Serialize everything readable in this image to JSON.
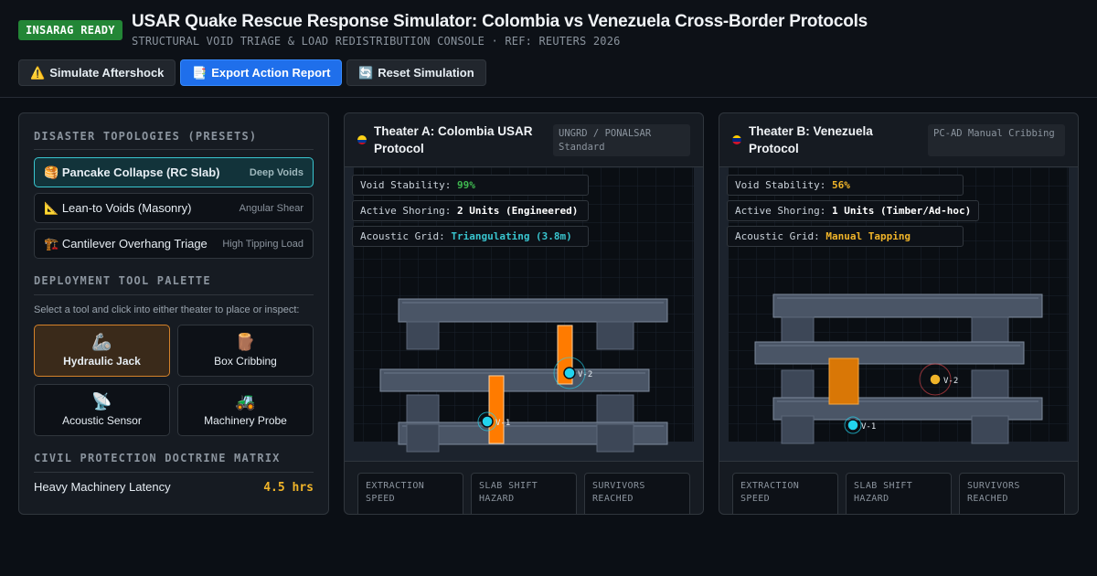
{
  "header": {
    "badge": "INSARAG READY",
    "title": "USAR Quake Rescue Response Simulator: Colombia vs Venezuela Cross-Border Protocols",
    "subtitle": "STRUCTURAL VOID TRIAGE & LOAD REDISTRIBUTION CONSOLE · REF: REUTERS 2026",
    "buttons": [
      {
        "icon": "⚠️",
        "label": "Simulate Aftershock",
        "icon_name": "warning-icon"
      },
      {
        "icon": "📑",
        "label": "Export Action Report",
        "icon_name": "report-icon"
      },
      {
        "icon": "🔄",
        "label": "Reset Simulation",
        "icon_name": "refresh-icon"
      }
    ]
  },
  "sidebar": {
    "presets_title": "DISASTER TOPOLOGIES (PRESETS)",
    "presets": [
      {
        "icon": "🥞",
        "name": "Pancake Collapse (RC Slab)",
        "tag": "Deep Voids",
        "active": true
      },
      {
        "icon": "📐",
        "name": "Lean-to Voids (Masonry)",
        "tag": "Angular Shear",
        "active": false
      },
      {
        "icon": "🏗️",
        "name": "Cantilever Overhang Triage",
        "tag": "High Tipping Load",
        "active": false
      }
    ],
    "tools_title": "DEPLOYMENT TOOL PALETTE",
    "tools_hint": "Select a tool and click into either theater to place or inspect:",
    "tools": [
      {
        "icon": "🦾",
        "label": "Hydraulic Jack",
        "active": true,
        "icon_name": "mechanical-arm-icon"
      },
      {
        "icon": "🪵",
        "label": "Box Cribbing",
        "active": false,
        "icon_name": "wood-icon"
      },
      {
        "icon": "📡",
        "label": "Acoustic Sensor",
        "active": false,
        "icon_name": "antenna-icon"
      },
      {
        "icon": "🚜",
        "label": "Machinery Probe",
        "active": false,
        "icon_name": "tractor-icon"
      }
    ],
    "doctrine_title": "CIVIL PROTECTION DOCTRINE MATRIX",
    "doctrine_metric": {
      "label": "Heavy Machinery Latency",
      "value": "4.5 hrs"
    }
  },
  "theaters": [
    {
      "title": "Theater A: Colombia USAR Protocol",
      "tag": "UNGRD / PONALSAR Standard",
      "flag_colors": [
        "#fcd116",
        "#003893",
        "#ce1126"
      ],
      "readouts": [
        {
          "label": "Void Stability:",
          "value": "99%",
          "color": "#3fb950"
        },
        {
          "label": "Active Shoring:",
          "value": "2 Units (Engineered)",
          "color": "#ffffff"
        },
        {
          "label": "Acoustic Grid:",
          "value": "Triangulating (3.8m)",
          "color": "#39c5cf"
        }
      ],
      "victims": [
        "V-1",
        "V-2"
      ],
      "stats": [
        "EXTRACTION SPEED",
        "SLAB SHIFT HAZARD",
        "SURVIVORS REACHED"
      ]
    },
    {
      "title": "Theater B: Venezuela Protocol",
      "tag": "PC-AD Manual Cribbing",
      "flag_colors": [
        "#ffcc00",
        "#00247d",
        "#cf142b"
      ],
      "readouts": [
        {
          "label": "Void Stability:",
          "value": "56%",
          "color": "#f0b429"
        },
        {
          "label": "Active Shoring:",
          "value": "1 Units (Timber/Ad-hoc)",
          "color": "#ffffff"
        },
        {
          "label": "Acoustic Grid:",
          "value": "Manual Tapping",
          "color": "#f0b429"
        }
      ],
      "victims": [
        "V-1",
        "V-2"
      ],
      "stats": [
        "EXTRACTION SPEED",
        "SLAB SHIFT HAZARD",
        "SURVIVORS REACHED"
      ]
    }
  ],
  "colors": {
    "accent": "#1f6feb",
    "ready": "#238636",
    "shoring": "#ff7b00",
    "timber": "#d97706",
    "sensor": "#22d3ee",
    "victim_warn": "#f0b429"
  }
}
